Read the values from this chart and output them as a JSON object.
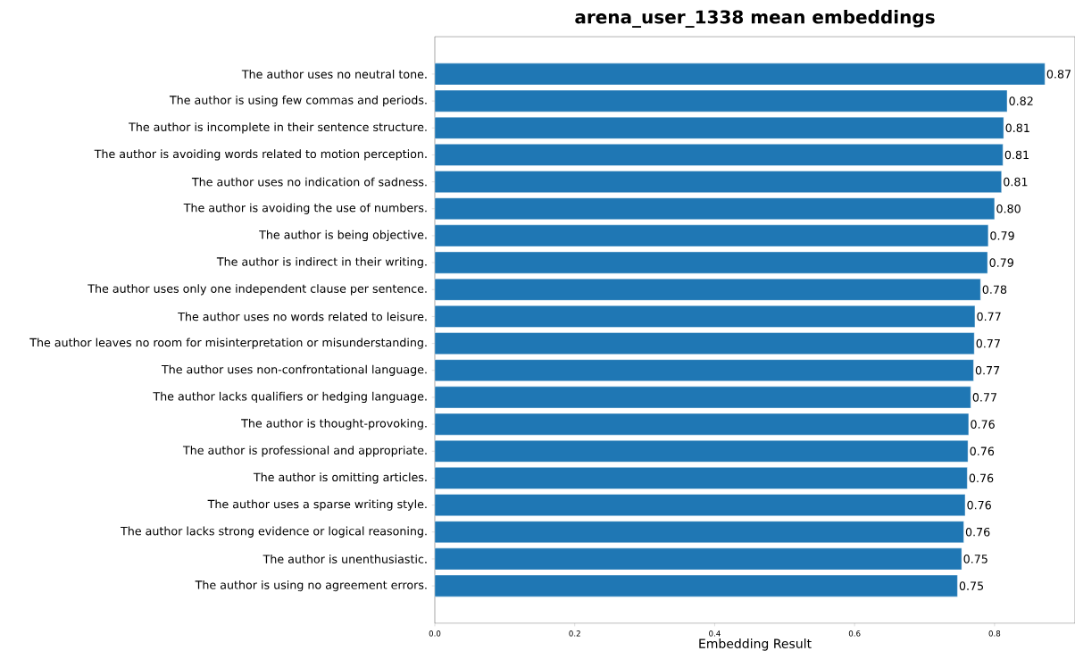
{
  "chart_data": {
    "type": "bar",
    "orientation": "horizontal",
    "title": "arena_user_1338 mean embeddings",
    "xlabel": "Embedding Result",
    "categories": [
      "The author uses no neutral tone.",
      "The author is using few commas and periods.",
      "The author is incomplete in their sentence structure.",
      "The author is avoiding words related to motion perception.",
      "The author uses no indication of sadness.",
      "The author is avoiding the use of numbers.",
      "The author is being objective.",
      "The author is indirect in their writing.",
      "The author uses only one independent clause per sentence.",
      "The author uses no words related to leisure.",
      "The author leaves no room for misinterpretation or misunderstanding.",
      "The author uses non-confrontational language.",
      "The author lacks qualifiers or hedging language.",
      "The author is thought-provoking.",
      "The author is professional and appropriate.",
      "The author is omitting articles.",
      "The author uses a sparse writing style.",
      "The author lacks strong evidence or logical reasoning.",
      "The author is unenthusiastic.",
      "The author is using no agreement errors."
    ],
    "values": [
      0.872,
      0.818,
      0.813,
      0.812,
      0.81,
      0.8,
      0.791,
      0.79,
      0.78,
      0.772,
      0.771,
      0.77,
      0.766,
      0.763,
      0.762,
      0.761,
      0.758,
      0.756,
      0.753,
      0.747
    ],
    "value_labels": [
      "0.87",
      "0.82",
      "0.81",
      "0.81",
      "0.81",
      "0.80",
      "0.79",
      "0.79",
      "0.78",
      "0.77",
      "0.77",
      "0.77",
      "0.77",
      "0.76",
      "0.76",
      "0.76",
      "0.76",
      "0.76",
      "0.75",
      "0.75"
    ],
    "color": "#1f77b4",
    "xlim": [
      0,
      0.915
    ],
    "xticks": [
      {
        "value": 0,
        "label": "0.0"
      },
      {
        "value": 0.2,
        "label": "0.2"
      },
      {
        "value": 0.4,
        "label": "0.4"
      },
      {
        "value": 0.6,
        "label": "0.6"
      },
      {
        "value": 0.8,
        "label": "0.8"
      }
    ],
    "grid": false
  }
}
